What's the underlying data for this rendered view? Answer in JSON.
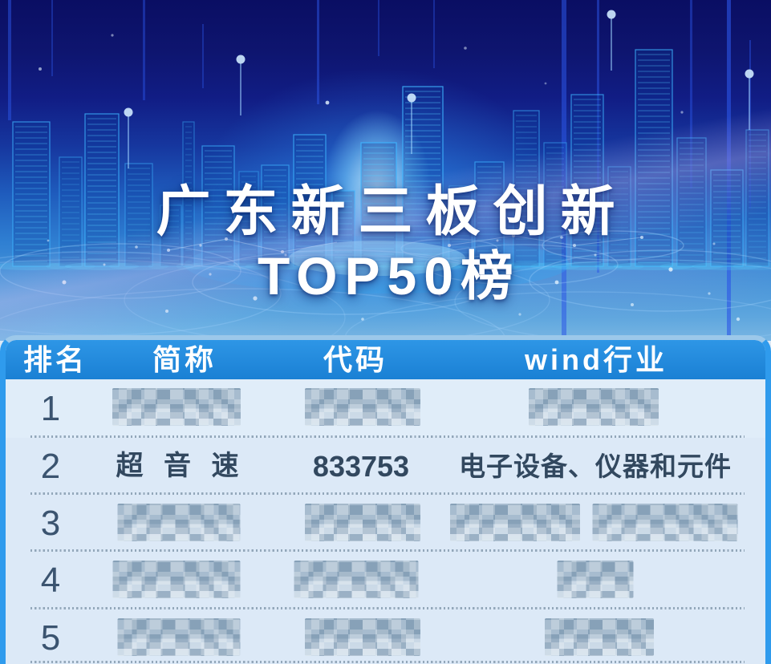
{
  "hero": {
    "title_line1": "广东新三板创新",
    "title_line2": "TOP50榜"
  },
  "table": {
    "headers": [
      {
        "id": "rank",
        "label": "排名"
      },
      {
        "id": "name",
        "label": "简称"
      },
      {
        "id": "code",
        "label": "代码"
      },
      {
        "id": "industry",
        "label": "wind行业"
      }
    ],
    "rows": [
      {
        "rank": "1",
        "name": null,
        "code": null,
        "industry": null,
        "redacted": true
      },
      {
        "rank": "2",
        "name": "超 音 速",
        "code": "833753",
        "industry": "电子设备、仪器和元件",
        "redacted": false
      },
      {
        "rank": "3",
        "name": null,
        "code": null,
        "industry": null,
        "redacted": true
      },
      {
        "rank": "4",
        "name": null,
        "code": null,
        "industry": null,
        "redacted": true
      },
      {
        "rank": "5",
        "name": null,
        "code": null,
        "industry": null,
        "redacted": true
      }
    ]
  },
  "colors": {
    "header_blue": "#1e87d8",
    "panel_border_blue": "#2f9bed",
    "panel_bg": "#dce9f7",
    "text_dark": "#32485f",
    "title_white": "#ffffff",
    "sky_navy": "#0e156f",
    "city_glow_cyan": "#53ccff"
  }
}
